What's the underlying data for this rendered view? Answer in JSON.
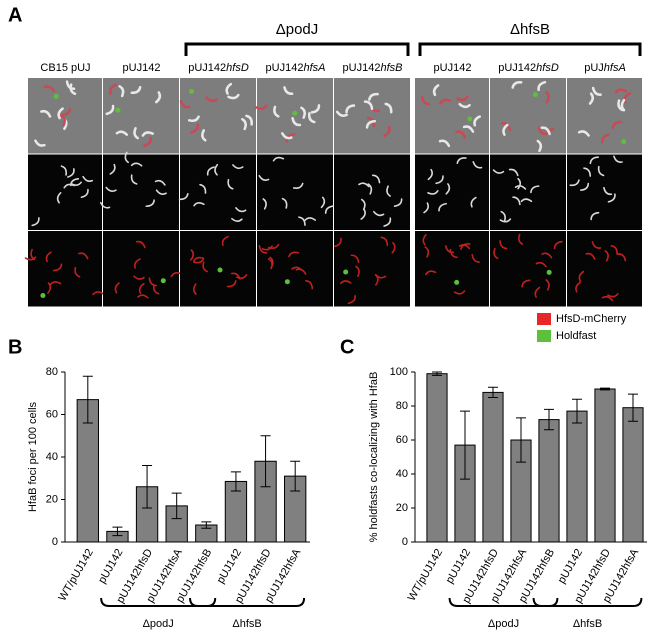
{
  "figure": {
    "panel_labels": [
      "A",
      "B",
      "C"
    ],
    "group_labels": [
      "ΔpodJ",
      "ΔhfsB"
    ],
    "image_columns": [
      [
        "CB15 pUJ",
        ""
      ],
      [
        "pUJ142",
        ""
      ],
      [
        "pUJ142",
        "hfsD"
      ],
      [
        "pUJ142",
        "hfsA"
      ],
      [
        "pUJ142",
        "hfsB"
      ],
      [
        "pUJ142",
        ""
      ],
      [
        "pUJ142",
        "hfsD"
      ],
      [
        "pUJ",
        "hfsA"
      ]
    ],
    "legend": [
      {
        "name": "HfsD-mCherry",
        "color": "#e8262a"
      },
      {
        "name": "Holdfast",
        "color": "#5cc03c"
      }
    ]
  },
  "chart_data": [
    {
      "type": "bar",
      "y_label": "HfaB foci per 100 cells",
      "categories": [
        "WT/pUJ142",
        "pUJ142",
        "pUJ142hfsD",
        "pUJ142hfsA",
        "pUJ142hfsB",
        "pUJ142",
        "pUJ142hfsD",
        "pUJ142hfsA"
      ],
      "values": [
        67,
        5,
        26,
        17,
        8,
        28.5,
        38,
        31
      ],
      "errors": [
        11,
        2,
        10,
        6,
        1.5,
        4.5,
        12,
        7
      ],
      "group_labels": [
        "ΔpodJ",
        "ΔhfsB"
      ],
      "color": "#808080",
      "ylim": [
        0,
        80
      ],
      "yticks": [
        0,
        20,
        40,
        60,
        80
      ]
    },
    {
      "type": "bar",
      "y_label": "% holdfasts co-localizing with HfaB",
      "categories": [
        "WT/pUJ142",
        "pUJ142",
        "pUJ142hfsD",
        "pUJ142hfsA",
        "pUJ142hfsB",
        "pUJ142",
        "pUJ142hfsD",
        "pUJ142hfsA"
      ],
      "values": [
        99,
        57,
        88,
        60,
        72,
        77,
        90,
        79
      ],
      "errors": [
        1,
        20,
        3,
        13,
        6,
        7,
        0.5,
        8
      ],
      "group_labels": [
        "ΔpodJ",
        "ΔhfsB"
      ],
      "color": "#808080",
      "ylim": [
        0,
        100
      ],
      "yticks": [
        0,
        20,
        40,
        60,
        80,
        100
      ]
    }
  ]
}
